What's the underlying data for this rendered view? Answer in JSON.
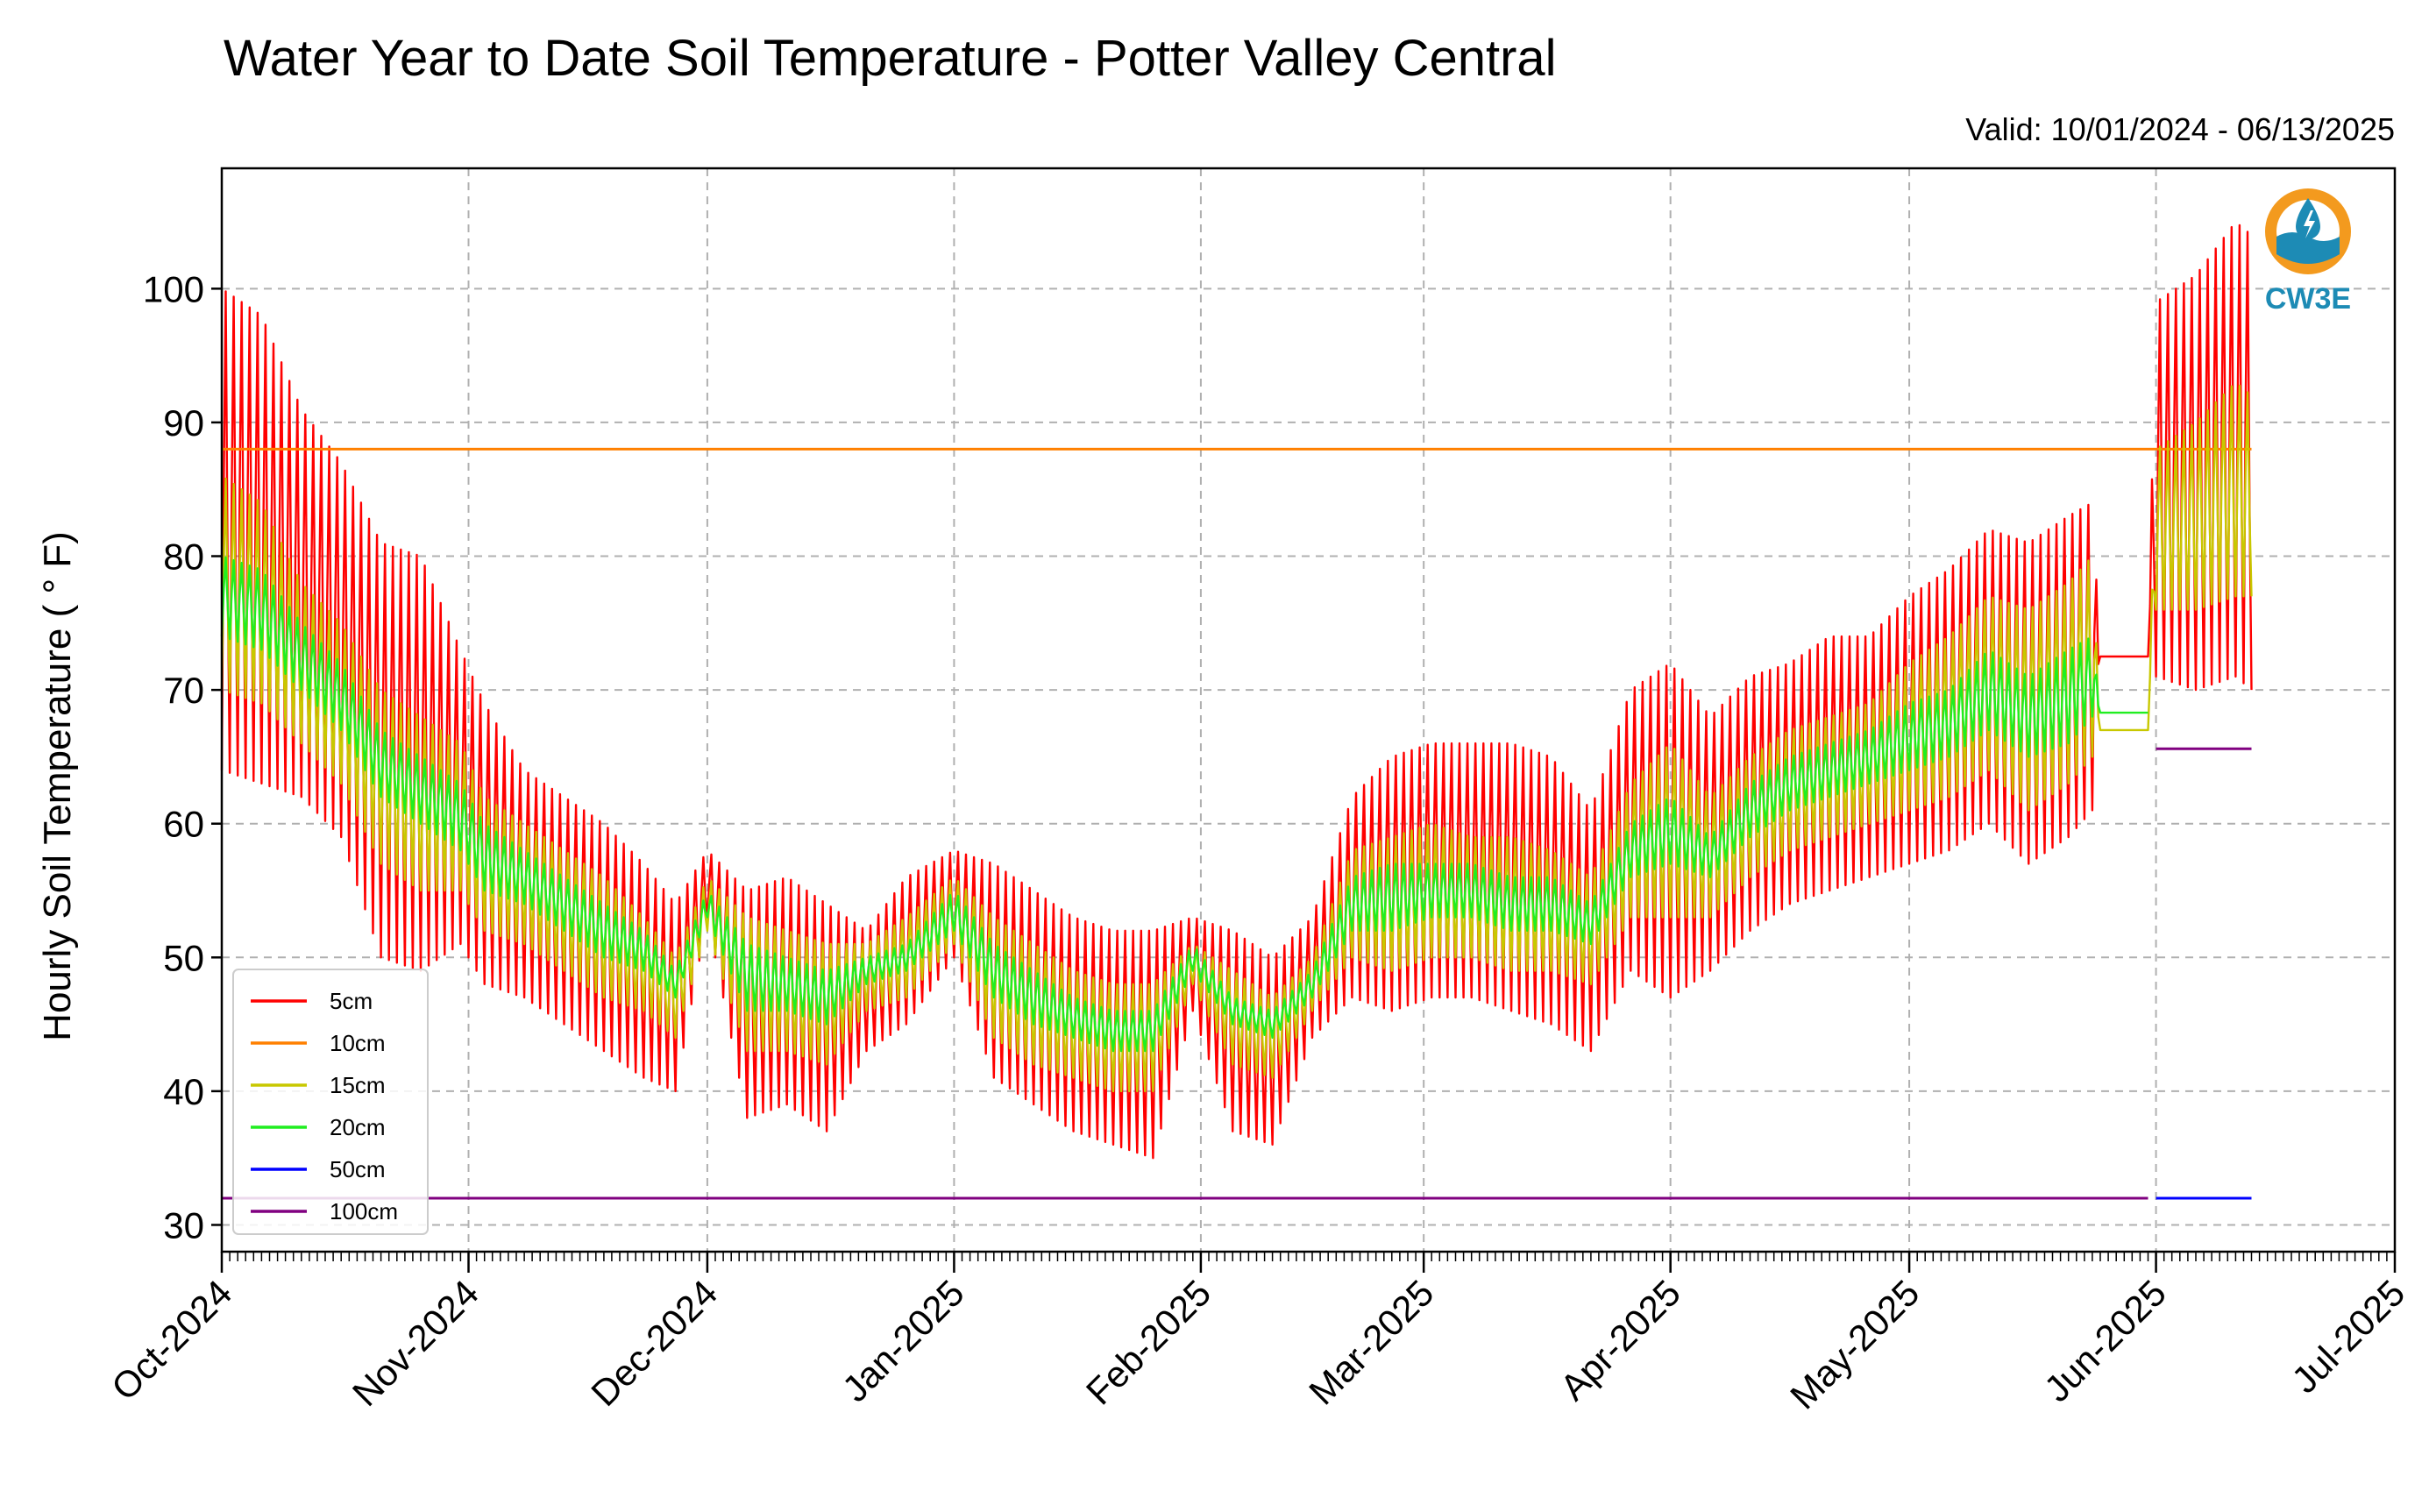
{
  "chart_data": {
    "type": "line",
    "title": "Water Year to Date Soil Temperature - Potter Valley Central",
    "subtitle": "Valid: 10/01/2024 - 06/13/2025",
    "xlabel": "",
    "ylabel": "Hourly Soil Temperature ($^\\circ$F)",
    "ylabel_display": "Hourly Soil Temperature ( ° F)",
    "xlim": [
      "2024-10-01",
      "2025-07-01"
    ],
    "ylim": [
      28,
      109
    ],
    "yticks": [
      30,
      40,
      50,
      60,
      70,
      80,
      90,
      100
    ],
    "xticks": [
      {
        "date": "2024-10-01",
        "label": "Oct-2024"
      },
      {
        "date": "2024-11-01",
        "label": "Nov-2024"
      },
      {
        "date": "2024-12-01",
        "label": "Dec-2024"
      },
      {
        "date": "2025-01-01",
        "label": "Jan-2025"
      },
      {
        "date": "2025-02-01",
        "label": "Feb-2025"
      },
      {
        "date": "2025-03-01",
        "label": "Mar-2025"
      },
      {
        "date": "2025-04-01",
        "label": "Apr-2025"
      },
      {
        "date": "2025-05-01",
        "label": "May-2025"
      },
      {
        "date": "2025-06-01",
        "label": "Jun-2025"
      },
      {
        "date": "2025-07-01",
        "label": "Jul-2025"
      }
    ],
    "grid": true,
    "legend_position": "lower-left",
    "series": [
      {
        "name": "5cm",
        "color": "#ff0000",
        "daily_min_max": [
          [
            "2024-10-01",
            64,
            100
          ],
          [
            "2024-10-06",
            63,
            98
          ],
          [
            "2024-10-11",
            62,
            91
          ],
          [
            "2024-10-16",
            59,
            87
          ],
          [
            "2024-10-21",
            50,
            81
          ],
          [
            "2024-10-26",
            49,
            80
          ],
          [
            "2024-10-31",
            51,
            73
          ],
          [
            "2024-11-03",
            48,
            69
          ],
          [
            "2024-11-08",
            47,
            64
          ],
          [
            "2024-11-13",
            45,
            62
          ],
          [
            "2024-11-18",
            43,
            60
          ],
          [
            "2024-11-23",
            41,
            57
          ],
          [
            "2024-11-27",
            40,
            54
          ],
          [
            "2024-12-01",
            53,
            58
          ],
          [
            "2024-12-06",
            38,
            55
          ],
          [
            "2024-12-11",
            39,
            56
          ],
          [
            "2024-12-16",
            37,
            54
          ],
          [
            "2024-12-21",
            43,
            52
          ],
          [
            "2024-12-26",
            45,
            56
          ],
          [
            "2025-01-01",
            50,
            58
          ],
          [
            "2025-01-06",
            41,
            57
          ],
          [
            "2025-01-11",
            39,
            55
          ],
          [
            "2025-01-16",
            37,
            53
          ],
          [
            "2025-01-21",
            36,
            52
          ],
          [
            "2025-01-26",
            35,
            52
          ],
          [
            "2025-01-31",
            46,
            53
          ],
          [
            "2025-02-05",
            37,
            52
          ],
          [
            "2025-02-10",
            36,
            50
          ],
          [
            "2025-02-15",
            44,
            53
          ],
          [
            "2025-02-20",
            47,
            62
          ],
          [
            "2025-02-25",
            46,
            65
          ],
          [
            "2025-03-02",
            47,
            66
          ],
          [
            "2025-03-07",
            47,
            66
          ],
          [
            "2025-03-12",
            46,
            66
          ],
          [
            "2025-03-17",
            45,
            65
          ],
          [
            "2025-03-22",
            43,
            61
          ],
          [
            "2025-03-27",
            49,
            70
          ],
          [
            "2025-04-01",
            47,
            72
          ],
          [
            "2025-04-06",
            49,
            68
          ],
          [
            "2025-04-11",
            52,
            71
          ],
          [
            "2025-04-16",
            54,
            72
          ],
          [
            "2025-04-21",
            55,
            74
          ],
          [
            "2025-04-26",
            56,
            74
          ],
          [
            "2025-05-01",
            57,
            77
          ],
          [
            "2025-05-06",
            58,
            79
          ],
          [
            "2025-05-11",
            60,
            82
          ],
          [
            "2025-05-16",
            57,
            81
          ],
          [
            "2025-05-21",
            59,
            83
          ],
          [
            "2025-05-24",
            61,
            84
          ],
          [
            "2025-05-25",
            72.5,
            72.5
          ],
          [
            "2025-05-31",
            72.5,
            72.5
          ],
          [
            "2025-06-01",
            71,
            99
          ],
          [
            "2025-06-06",
            70,
            101
          ],
          [
            "2025-06-11",
            71,
            105
          ],
          [
            "2025-06-13",
            70,
            104
          ]
        ]
      },
      {
        "name": "10cm",
        "color": "#ff8000",
        "constant": 88,
        "date_range": [
          "2024-10-01",
          "2025-06-13"
        ]
      },
      {
        "name": "15cm",
        "color": "#c8c800",
        "daily_min_max": [
          [
            "2024-10-01",
            70,
            86
          ],
          [
            "2024-10-06",
            69,
            84
          ],
          [
            "2024-10-11",
            66,
            78
          ],
          [
            "2024-10-16",
            63,
            75
          ],
          [
            "2024-10-21",
            57,
            70
          ],
          [
            "2024-10-26",
            55,
            68
          ],
          [
            "2024-10-31",
            55,
            66
          ],
          [
            "2024-11-03",
            52,
            62
          ],
          [
            "2024-11-08",
            51,
            60
          ],
          [
            "2024-11-13",
            49,
            58
          ],
          [
            "2024-11-18",
            47,
            56
          ],
          [
            "2024-11-23",
            46,
            53
          ],
          [
            "2024-11-27",
            44,
            50
          ],
          [
            "2024-12-01",
            52,
            56
          ],
          [
            "2024-12-06",
            43,
            53
          ],
          [
            "2024-12-11",
            43,
            52
          ],
          [
            "2024-12-16",
            42,
            51
          ],
          [
            "2024-12-21",
            46,
            51
          ],
          [
            "2024-12-26",
            47,
            53
          ],
          [
            "2025-01-01",
            51,
            56
          ],
          [
            "2025-01-06",
            44,
            53
          ],
          [
            "2025-01-11",
            42,
            51
          ],
          [
            "2025-01-16",
            41,
            49
          ],
          [
            "2025-01-21",
            40,
            48
          ],
          [
            "2025-01-26",
            40,
            48
          ],
          [
            "2025-01-31",
            48,
            51
          ],
          [
            "2025-02-05",
            42,
            49
          ],
          [
            "2025-02-10",
            41,
            47
          ],
          [
            "2025-02-15",
            46,
            50
          ],
          [
            "2025-02-20",
            50,
            58
          ],
          [
            "2025-02-25",
            49,
            59
          ],
          [
            "2025-03-02",
            50,
            60
          ],
          [
            "2025-03-07",
            50,
            59
          ],
          [
            "2025-03-12",
            49,
            59
          ],
          [
            "2025-03-17",
            49,
            58
          ],
          [
            "2025-03-22",
            48,
            56
          ],
          [
            "2025-03-27",
            53,
            63
          ],
          [
            "2025-04-01",
            53,
            66
          ],
          [
            "2025-04-06",
            53,
            62
          ],
          [
            "2025-04-11",
            56,
            65
          ],
          [
            "2025-04-16",
            58,
            67
          ],
          [
            "2025-04-21",
            59,
            68
          ],
          [
            "2025-04-26",
            60,
            69
          ],
          [
            "2025-05-01",
            61,
            72
          ],
          [
            "2025-05-06",
            62,
            74
          ],
          [
            "2025-05-11",
            64,
            77
          ],
          [
            "2025-05-16",
            61,
            76
          ],
          [
            "2025-05-21",
            63,
            78
          ],
          [
            "2025-05-24",
            65,
            80
          ],
          [
            "2025-05-25",
            67,
            67
          ],
          [
            "2025-05-31",
            67,
            67
          ],
          [
            "2025-06-01",
            76,
            88
          ],
          [
            "2025-06-06",
            76,
            90
          ],
          [
            "2025-06-11",
            77,
            93
          ],
          [
            "2025-06-13",
            77,
            92
          ]
        ]
      },
      {
        "name": "20cm",
        "color": "#20ee20",
        "daily_min_max": [
          [
            "2024-10-01",
            74,
            80
          ],
          [
            "2024-10-06",
            73,
            79
          ],
          [
            "2024-10-11",
            70,
            75
          ],
          [
            "2024-10-16",
            67,
            72
          ],
          [
            "2024-10-21",
            62,
            67
          ],
          [
            "2024-10-26",
            60,
            65
          ],
          [
            "2024-10-31",
            58,
            63
          ],
          [
            "2024-11-03",
            55,
            60
          ],
          [
            "2024-11-08",
            54,
            58
          ],
          [
            "2024-11-13",
            52,
            56
          ],
          [
            "2024-11-18",
            50,
            54
          ],
          [
            "2024-11-23",
            49,
            52
          ],
          [
            "2024-11-27",
            47,
            49
          ],
          [
            "2024-12-01",
            53,
            55
          ],
          [
            "2024-12-06",
            46,
            51
          ],
          [
            "2024-12-11",
            46,
            50
          ],
          [
            "2024-12-16",
            45,
            49
          ],
          [
            "2024-12-21",
            48,
            50
          ],
          [
            "2024-12-26",
            49,
            51
          ],
          [
            "2025-01-01",
            52,
            55
          ],
          [
            "2025-01-06",
            47,
            51
          ],
          [
            "2025-01-11",
            45,
            49
          ],
          [
            "2025-01-16",
            44,
            47
          ],
          [
            "2025-01-21",
            43,
            46
          ],
          [
            "2025-01-26",
            43,
            46
          ],
          [
            "2025-01-31",
            49,
            51
          ],
          [
            "2025-02-05",
            45,
            47
          ],
          [
            "2025-02-10",
            44,
            46
          ],
          [
            "2025-02-15",
            47,
            49
          ],
          [
            "2025-02-20",
            52,
            56
          ],
          [
            "2025-02-25",
            52,
            57
          ],
          [
            "2025-03-02",
            53,
            57
          ],
          [
            "2025-03-07",
            53,
            57
          ],
          [
            "2025-03-12",
            52,
            56
          ],
          [
            "2025-03-17",
            52,
            56
          ],
          [
            "2025-03-22",
            51,
            54
          ],
          [
            "2025-03-27",
            56,
            60
          ],
          [
            "2025-04-01",
            57,
            62
          ],
          [
            "2025-04-06",
            56,
            59
          ],
          [
            "2025-04-11",
            59,
            63
          ],
          [
            "2025-04-16",
            61,
            65
          ],
          [
            "2025-04-21",
            62,
            66
          ],
          [
            "2025-04-26",
            63,
            67
          ],
          [
            "2025-05-01",
            64,
            69
          ],
          [
            "2025-05-06",
            65,
            70
          ],
          [
            "2025-05-11",
            67,
            73
          ],
          [
            "2025-05-16",
            65,
            71
          ],
          [
            "2025-05-21",
            66,
            73
          ],
          [
            "2025-05-24",
            68,
            74
          ],
          [
            "2025-05-25",
            68.3,
            68.3
          ],
          [
            "2025-05-31",
            68.3,
            68.3
          ]
        ]
      },
      {
        "name": "50cm",
        "color": "#0000ff",
        "constant": 32,
        "date_range": [
          "2025-06-01",
          "2025-06-13"
        ]
      },
      {
        "name": "100cm",
        "color": "#800080",
        "segments": [
          {
            "constant": 32,
            "date_range": [
              "2024-10-01",
              "2025-05-31"
            ]
          },
          {
            "constant": 65.6,
            "date_range": [
              "2025-06-01",
              "2025-06-13"
            ]
          }
        ]
      }
    ]
  },
  "logo": {
    "text": "CW3E",
    "colors": {
      "ring": "#f39a1e",
      "water": "#1d8bb5",
      "text": "#1d8bb5"
    }
  },
  "style": {
    "grid_color": "#b0b0b0",
    "axis_color": "#000000"
  }
}
